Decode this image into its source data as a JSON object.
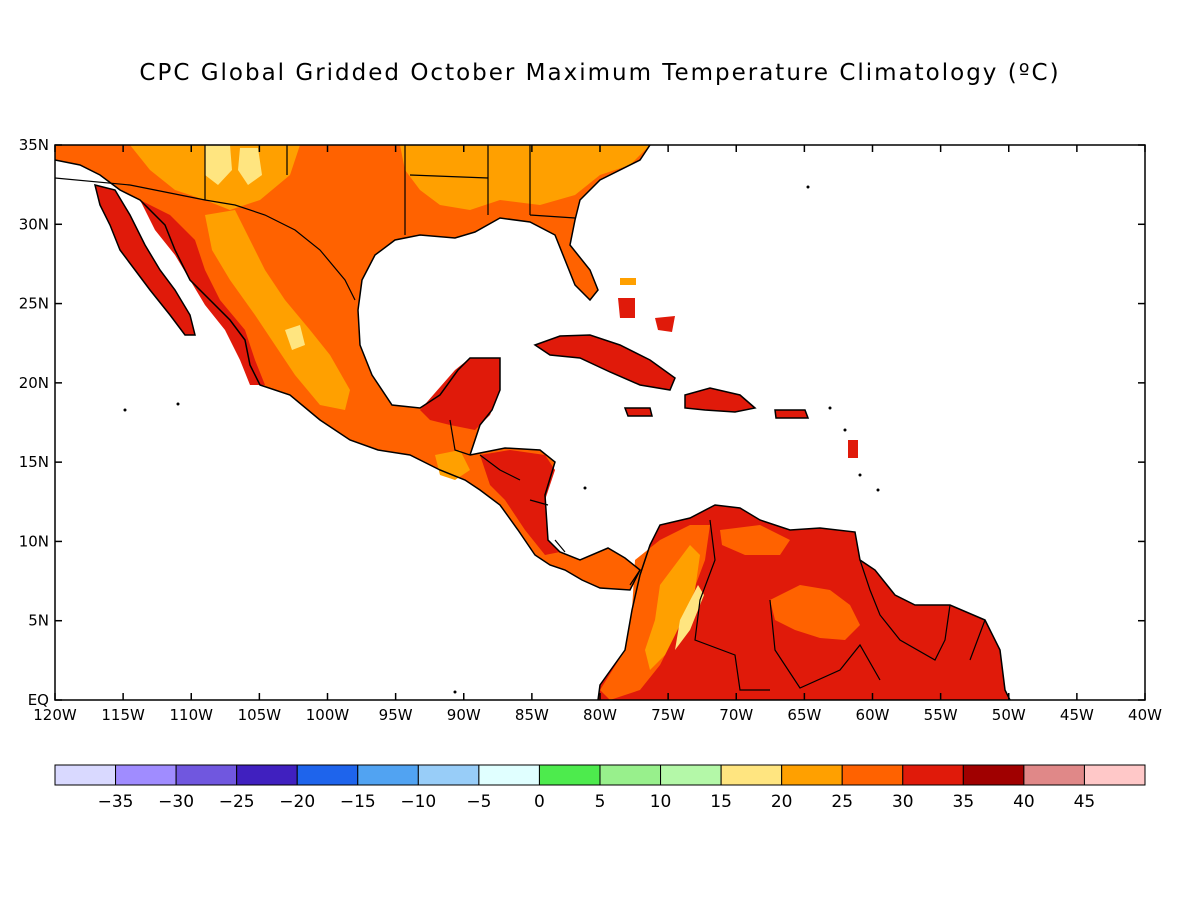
{
  "title": "CPC Global Gridded October Maximum Temperature Climatology (ºC)",
  "lat_ticks": [
    "35N",
    "30N",
    "25N",
    "20N",
    "15N",
    "10N",
    "5N",
    "EQ"
  ],
  "lon_ticks": [
    "120W",
    "115W",
    "110W",
    "105W",
    "100W",
    "95W",
    "90W",
    "85W",
    "80W",
    "75W",
    "70W",
    "65W",
    "60W",
    "55W",
    "50W",
    "45W",
    "40W"
  ],
  "colorbar": {
    "colors": [
      "#d9d9ff",
      "#a08cff",
      "#7057df",
      "#4020bf",
      "#1e64ec",
      "#51a3f2",
      "#98cdf8",
      "#e0ffff",
      "#4deb4d",
      "#98f08c",
      "#b4f8a8",
      "#ffe580",
      "#ffa000",
      "#ff6200",
      "#e01a0a",
      "#a00000",
      "#e08888",
      "#ffc8c8"
    ],
    "labels": [
      "-35",
      "-30",
      "-25",
      "-20",
      "-15",
      "-10",
      "-5",
      "0",
      "5",
      "10",
      "15",
      "20",
      "25",
      "30",
      "35",
      "40",
      "45"
    ]
  }
}
